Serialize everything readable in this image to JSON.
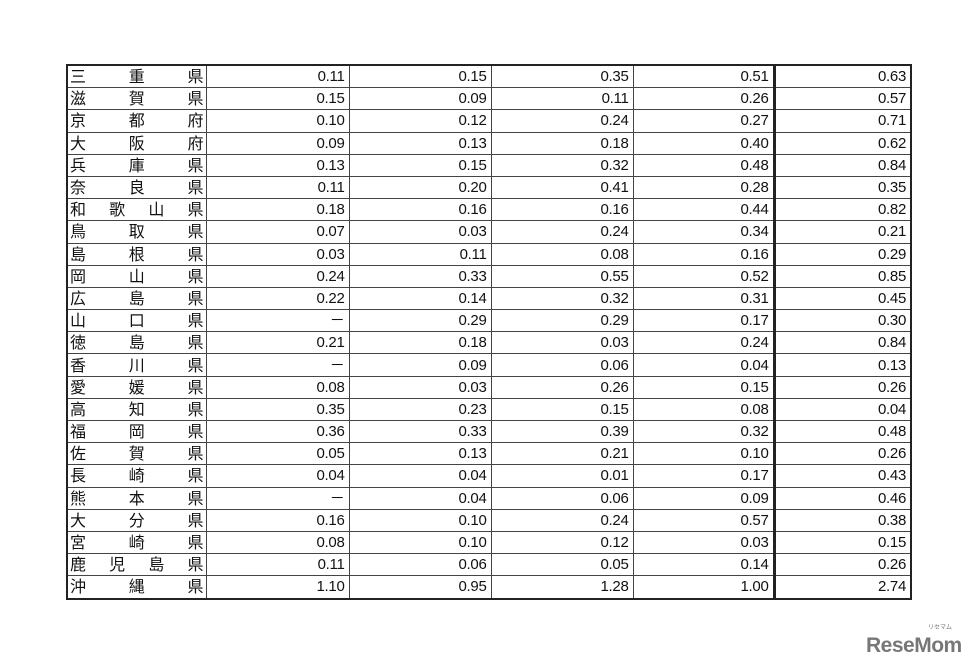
{
  "table": {
    "rows": [
      {
        "name": "三重県",
        "values": [
          "0.11",
          "0.15",
          "0.35",
          "0.51",
          "0.63"
        ]
      },
      {
        "name": "滋賀県",
        "values": [
          "0.15",
          "0.09",
          "0.11",
          "0.26",
          "0.57"
        ]
      },
      {
        "name": "京都府",
        "values": [
          "0.10",
          "0.12",
          "0.24",
          "0.27",
          "0.71"
        ]
      },
      {
        "name": "大阪府",
        "values": [
          "0.09",
          "0.13",
          "0.18",
          "0.40",
          "0.62"
        ]
      },
      {
        "name": "兵庫県",
        "values": [
          "0.13",
          "0.15",
          "0.32",
          "0.48",
          "0.84"
        ]
      },
      {
        "name": "奈良県",
        "values": [
          "0.11",
          "0.20",
          "0.41",
          "0.28",
          "0.35"
        ]
      },
      {
        "name": "和歌山県",
        "values": [
          "0.18",
          "0.16",
          "0.16",
          "0.44",
          "0.82"
        ]
      },
      {
        "name": "鳥取県",
        "values": [
          "0.07",
          "0.03",
          "0.24",
          "0.34",
          "0.21"
        ]
      },
      {
        "name": "島根県",
        "values": [
          "0.03",
          "0.11",
          "0.08",
          "0.16",
          "0.29"
        ]
      },
      {
        "name": "岡山県",
        "values": [
          "0.24",
          "0.33",
          "0.55",
          "0.52",
          "0.85"
        ]
      },
      {
        "name": "広島県",
        "values": [
          "0.22",
          "0.14",
          "0.32",
          "0.31",
          "0.45"
        ]
      },
      {
        "name": "山口県",
        "values": [
          "－",
          "0.29",
          "0.29",
          "0.17",
          "0.30"
        ]
      },
      {
        "name": "徳島県",
        "values": [
          "0.21",
          "0.18",
          "0.03",
          "0.24",
          "0.84"
        ]
      },
      {
        "name": "香川県",
        "values": [
          "－",
          "0.09",
          "0.06",
          "0.04",
          "0.13"
        ]
      },
      {
        "name": "愛媛県",
        "values": [
          "0.08",
          "0.03",
          "0.26",
          "0.15",
          "0.26"
        ]
      },
      {
        "name": "高知県",
        "values": [
          "0.35",
          "0.23",
          "0.15",
          "0.08",
          "0.04"
        ]
      },
      {
        "name": "福岡県",
        "values": [
          "0.36",
          "0.33",
          "0.39",
          "0.32",
          "0.48"
        ]
      },
      {
        "name": "佐賀県",
        "values": [
          "0.05",
          "0.13",
          "0.21",
          "0.10",
          "0.26"
        ]
      },
      {
        "name": "長崎県",
        "values": [
          "0.04",
          "0.04",
          "0.01",
          "0.17",
          "0.43"
        ]
      },
      {
        "name": "熊本県",
        "values": [
          "－",
          "0.04",
          "0.06",
          "0.09",
          "0.46"
        ]
      },
      {
        "name": "大分県",
        "values": [
          "0.16",
          "0.10",
          "0.24",
          "0.57",
          "0.38"
        ]
      },
      {
        "name": "宮崎県",
        "values": [
          "0.08",
          "0.10",
          "0.12",
          "0.03",
          "0.15"
        ]
      },
      {
        "name": "鹿児島県",
        "values": [
          "0.11",
          "0.06",
          "0.05",
          "0.14",
          "0.26"
        ]
      },
      {
        "name": "沖縄県",
        "values": [
          "1.10",
          "0.95",
          "1.28",
          "1.00",
          "2.74"
        ]
      }
    ]
  },
  "watermark": {
    "text": "ReseMom",
    "sub": "リセマム"
  }
}
